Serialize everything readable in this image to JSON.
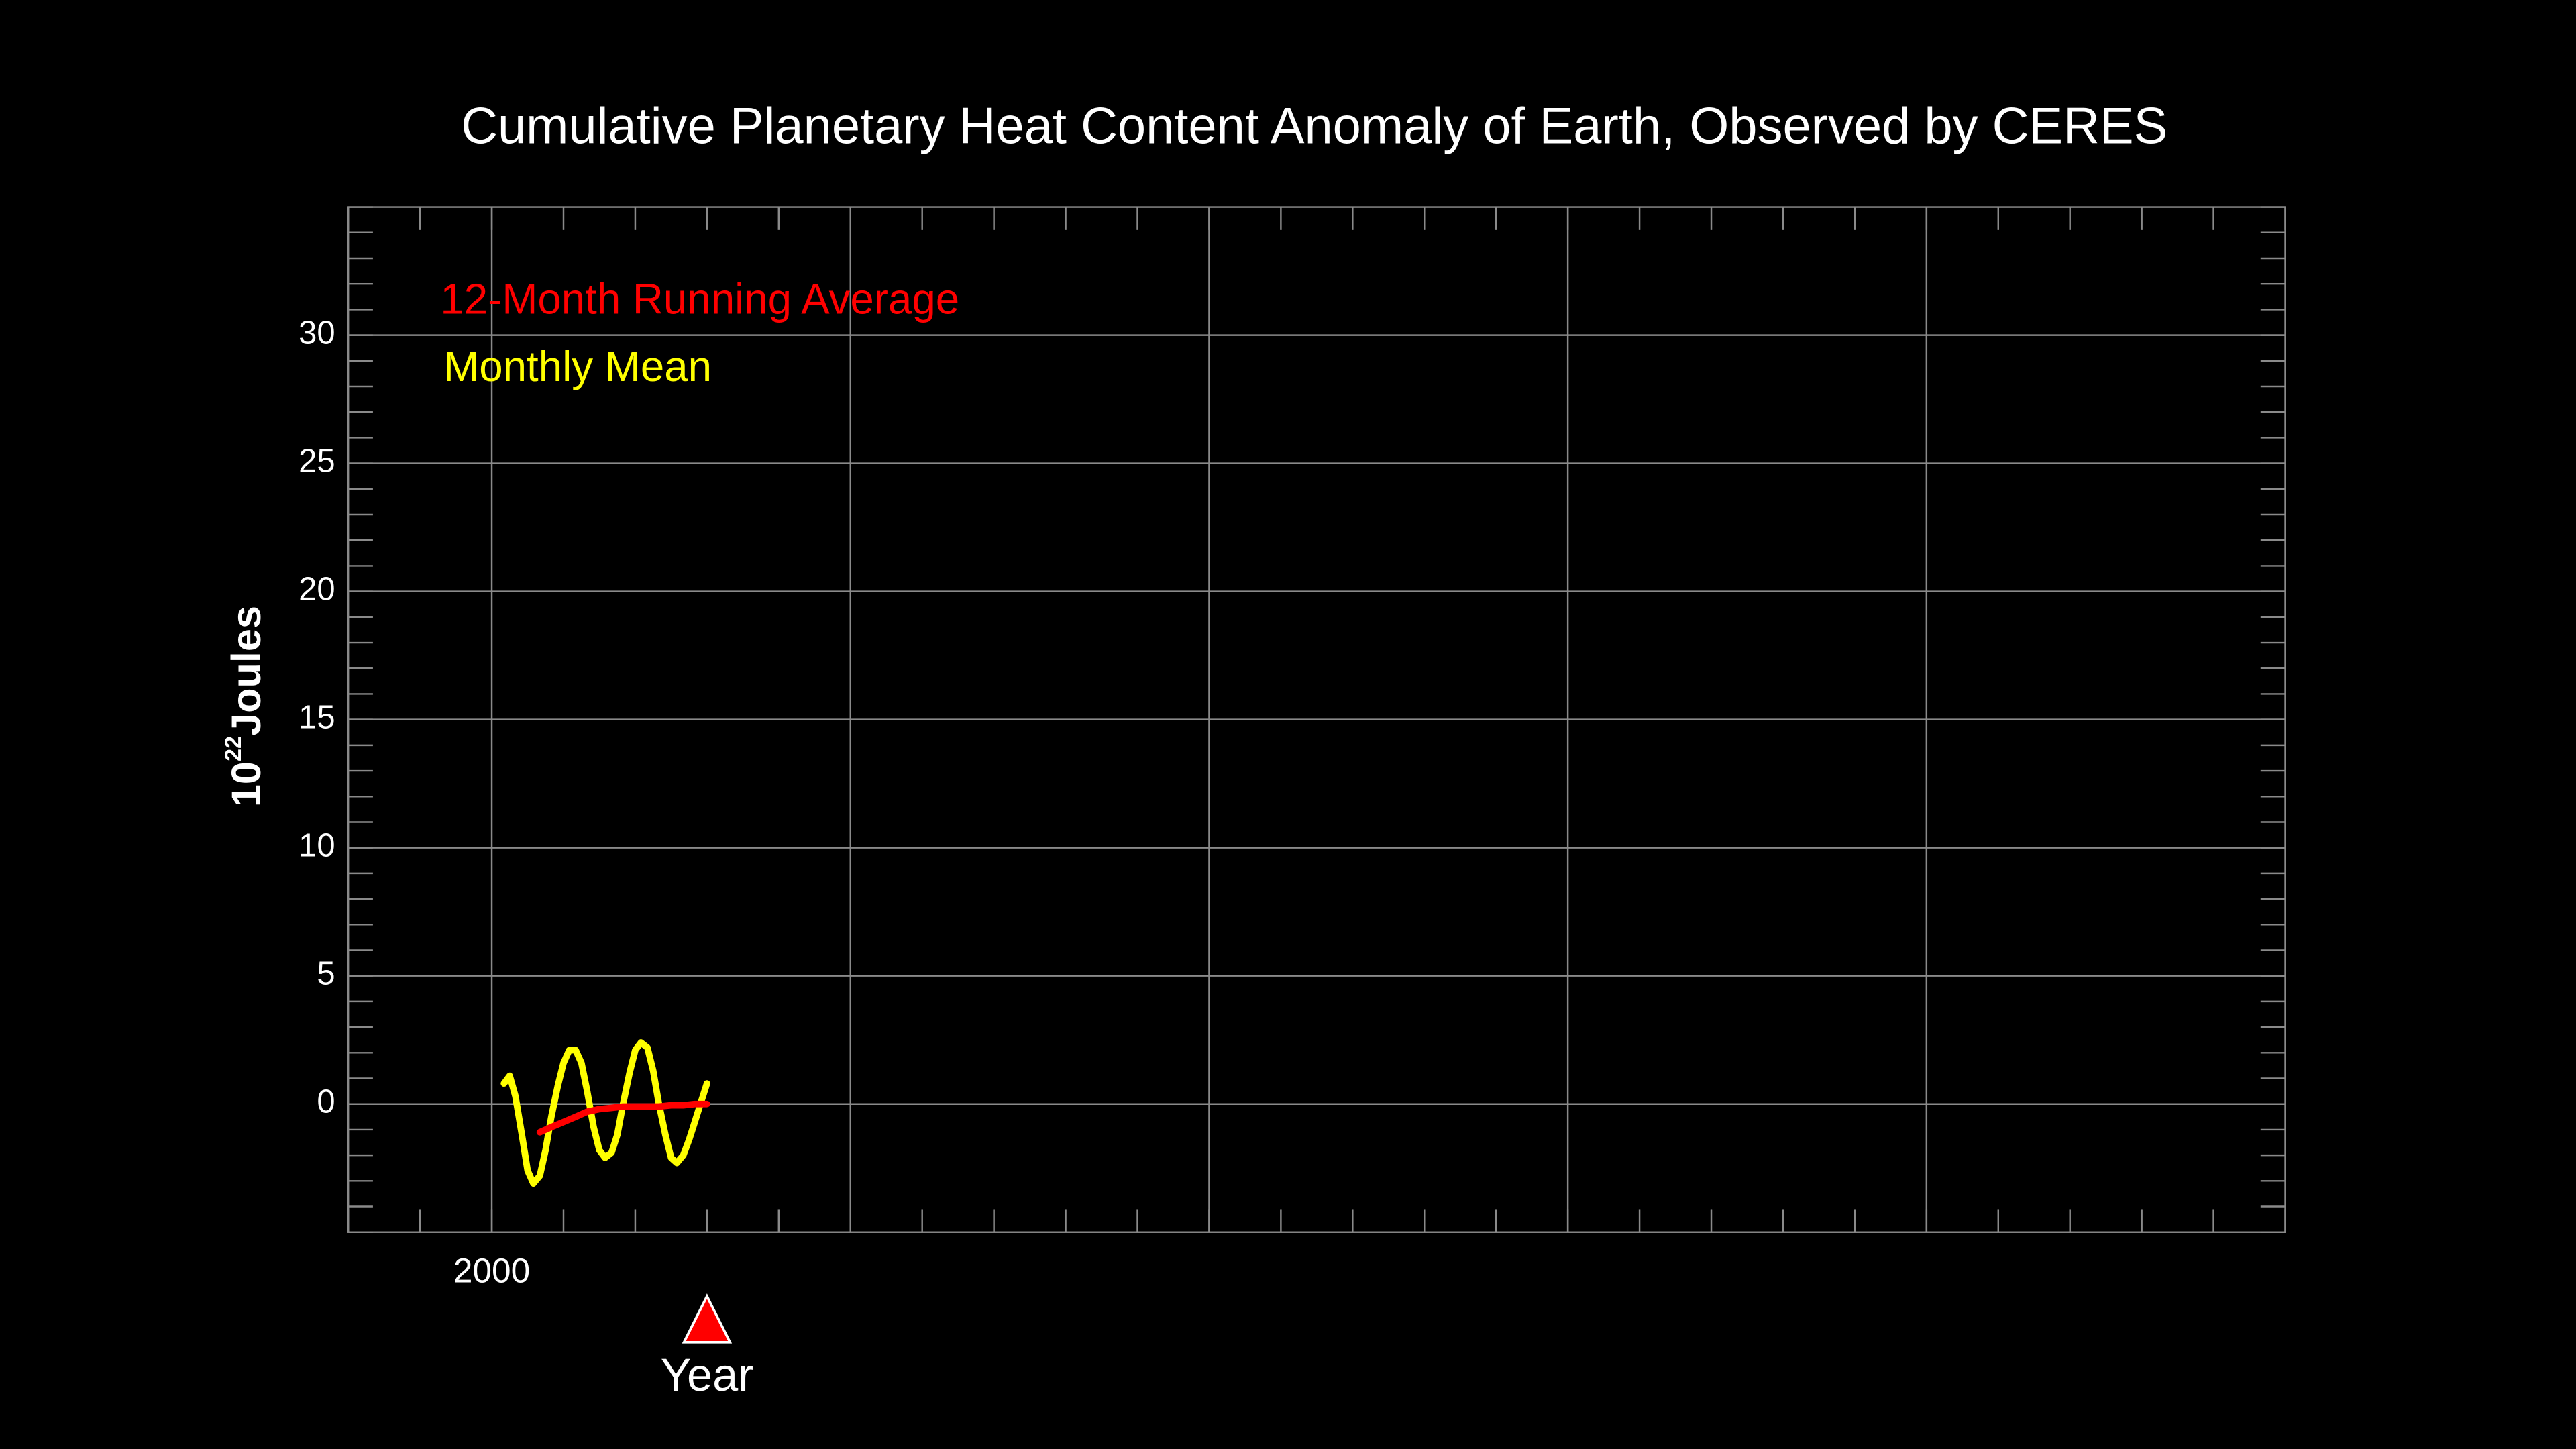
{
  "chart_data": {
    "type": "line",
    "title": "Cumulative Planetary Heat Content Anomaly of Earth, Observed by CERES",
    "xlabel": "Year",
    "ylabel": {
      "base": "10",
      "exponent": "22",
      "unit": "Joules"
    },
    "xlim": [
      1998,
      2025
    ],
    "ylim": [
      -5,
      35
    ],
    "xticks": [
      2000,
      {
        "value": 2005,
        "label": null
      },
      {
        "value": 2010,
        "label": null
      },
      {
        "value": 2015,
        "label": null
      },
      {
        "value": 2020,
        "label": null
      }
    ],
    "yticks": [
      0,
      5,
      10,
      15,
      20,
      25,
      30
    ],
    "minor_ticks": {
      "x": 1,
      "y": 1
    },
    "grid": true,
    "legend": "upper-left",
    "marker_color": "#ff0000",
    "series": [
      {
        "name": "12-Month Running Average",
        "color": "#ff0000",
        "x": [
          2000.67,
          2000.83,
          2001.0,
          2001.17,
          2001.33,
          2001.5,
          2001.67,
          2001.83,
          2002.0,
          2002.17,
          2002.33,
          2002.5,
          2002.67,
          2002.83,
          2003.0
        ],
        "values": [
          -1.1,
          -0.9,
          -0.7,
          -0.5,
          -0.3,
          -0.2,
          -0.15,
          -0.1,
          -0.1,
          -0.1,
          -0.1,
          -0.05,
          -0.05,
          0,
          0
        ]
      },
      {
        "name": "Monthly Mean",
        "color": "#ffff00",
        "x": [
          2000.17,
          2000.25,
          2000.33,
          2000.42,
          2000.5,
          2000.58,
          2000.67,
          2000.75,
          2000.83,
          2000.92,
          2001.0,
          2001.08,
          2001.17,
          2001.25,
          2001.33,
          2001.42,
          2001.5,
          2001.58,
          2001.67,
          2001.75,
          2001.83,
          2001.92,
          2002.0,
          2002.08,
          2002.17,
          2002.25,
          2002.33,
          2002.42,
          2002.5,
          2002.58,
          2002.67,
          2002.75,
          2002.83,
          2002.92,
          2003.0
        ],
        "values": [
          0.8,
          1.1,
          0.3,
          -1.2,
          -2.6,
          -3.1,
          -2.8,
          -1.8,
          -0.5,
          0.7,
          1.6,
          2.1,
          2.1,
          1.6,
          0.5,
          -0.9,
          -1.8,
          -2.1,
          -1.9,
          -1.2,
          0,
          1.2,
          2.1,
          2.4,
          2.2,
          1.3,
          0,
          -1.2,
          -2.1,
          -2.3,
          -2.0,
          -1.4,
          -0.7,
          0.1,
          0.8
        ]
      }
    ]
  }
}
